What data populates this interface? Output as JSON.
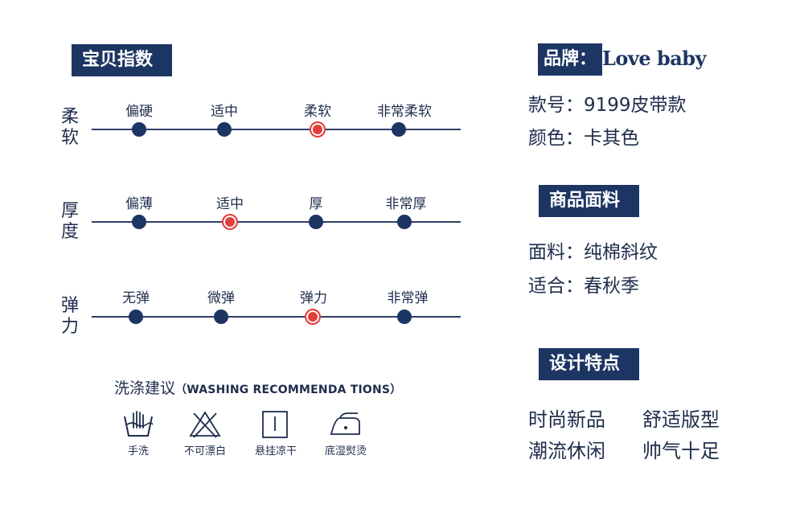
{
  "index_section": {
    "title": "宝贝指数",
    "scales": [
      {
        "label": "柔软",
        "options": [
          "偏硬",
          "适中",
          "柔软",
          "非常柔软"
        ],
        "selected_index": 2
      },
      {
        "label": "厚度",
        "options": [
          "偏薄",
          "适中",
          "厚",
          "非常厚"
        ],
        "selected_index": 1
      },
      {
        "label": "弹力",
        "options": [
          "无弹",
          "微弹",
          "弹力",
          "非常弹"
        ],
        "selected_index": 2
      }
    ]
  },
  "washing": {
    "title": "洗涤建议",
    "title_en": "（WASHING RECOMMENDA TIONS）",
    "items": [
      {
        "label": "手洗",
        "icon": "hand-wash-icon"
      },
      {
        "label": "不可漂白",
        "icon": "no-bleach-icon"
      },
      {
        "label": "悬挂凉干",
        "icon": "hang-dry-icon"
      },
      {
        "label": "底湿熨烫",
        "icon": "iron-low-icon"
      }
    ]
  },
  "brand": {
    "tag": "品牌：",
    "value": "Love baby"
  },
  "product": {
    "style_no": "款号：9199皮带款",
    "color": "颜色：卡其色"
  },
  "fabric": {
    "title": "商品面料",
    "material": "面料：纯棉斜纹",
    "season": "适合：春秋季"
  },
  "design": {
    "title": "设计特点",
    "features": [
      "时尚新品",
      "舒适版型",
      "潮流休闲",
      "帅气十足"
    ]
  },
  "colors": {
    "navy": "#1c3563",
    "selected": "#e2403c",
    "text": "#1f2d4d"
  }
}
